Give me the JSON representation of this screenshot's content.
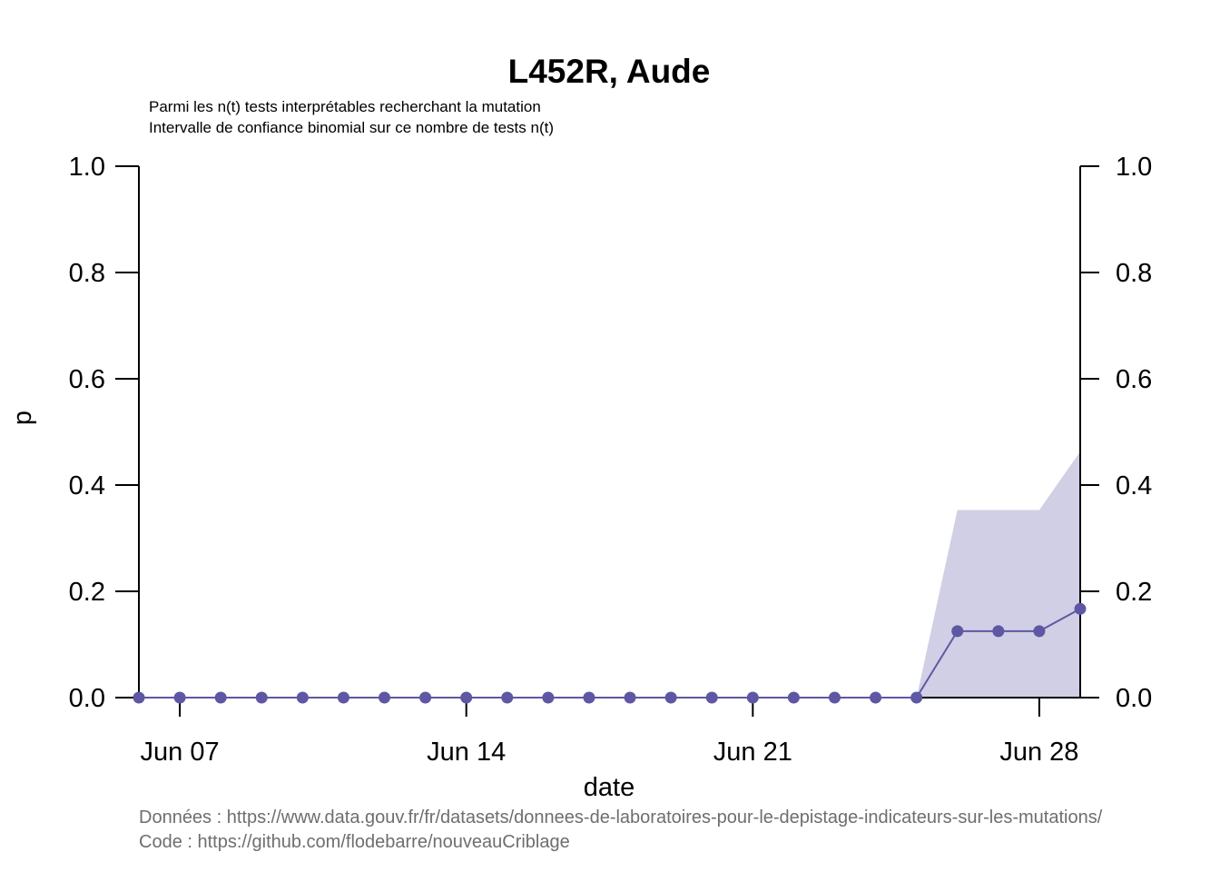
{
  "chart_data": {
    "type": "line",
    "title": "L452R, Aude",
    "subtitle_lines": [
      "Parmi les n(t) tests interprétables recherchant la mutation",
      "Intervalle de confiance binomial sur ce nombre de tests n(t)"
    ],
    "xlabel": "date",
    "ylabel": "p",
    "ylim": [
      0,
      1
    ],
    "y_ticks": [
      0,
      0.2,
      0.4,
      0.6,
      0.8,
      1
    ],
    "y_tick_labels": [
      "0.0",
      "0.2",
      "0.4",
      "0.6",
      "0.8",
      "1.0"
    ],
    "x_ticks": [
      "2021-06-07",
      "2021-06-14",
      "2021-06-21",
      "2021-06-28"
    ],
    "x_tick_labels": [
      "Jun 07",
      "Jun 14",
      "Jun 21",
      "Jun 28"
    ],
    "xlim": [
      "2021-06-06",
      "2021-06-29"
    ],
    "grid": false,
    "series": [
      {
        "x": [
          "2021-06-06",
          "2021-06-07",
          "2021-06-08",
          "2021-06-09",
          "2021-06-10",
          "2021-06-11",
          "2021-06-12",
          "2021-06-13",
          "2021-06-14",
          "2021-06-15",
          "2021-06-16",
          "2021-06-17",
          "2021-06-18",
          "2021-06-19",
          "2021-06-20",
          "2021-06-21",
          "2021-06-22",
          "2021-06-23",
          "2021-06-24",
          "2021-06-25",
          "2021-06-26",
          "2021-06-27",
          "2021-06-28",
          "2021-06-29"
        ],
        "values": [
          0,
          0,
          0,
          0,
          0,
          0,
          0,
          0,
          0,
          0,
          0,
          0,
          0,
          0,
          0,
          0,
          0,
          0,
          0,
          0,
          0.125,
          0.125,
          0.125,
          0.167
        ],
        "ci_lower": [
          0,
          0,
          0,
          0,
          0,
          0,
          0,
          0,
          0,
          0,
          0,
          0,
          0,
          0,
          0,
          0,
          0,
          0,
          0,
          0,
          0,
          0,
          0,
          0
        ],
        "ci_upper": [
          0,
          0,
          0,
          0,
          0,
          0,
          0,
          0,
          0,
          0,
          0,
          0,
          0,
          0,
          0,
          0,
          0,
          0,
          0,
          0,
          0.353,
          0.353,
          0.353,
          0.463
        ]
      }
    ],
    "colors": {
      "line": "#5e57a3",
      "band": "#d1cfe5",
      "axis": "#000000"
    },
    "sources": [
      "Données : https://www.data.gouv.fr/fr/datasets/donnees-de-laboratoires-pour-le-depistage-indicateurs-sur-les-mutations/",
      "Code : https://github.com/flodebarre/nouveauCriblage"
    ]
  }
}
